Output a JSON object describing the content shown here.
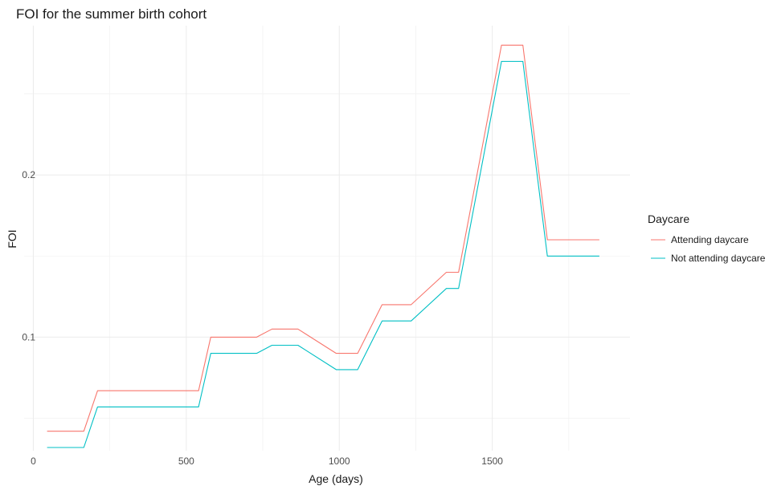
{
  "chart_data": {
    "type": "line",
    "title": "FOI for the summer birth cohort",
    "xlabel": "Age (days)",
    "ylabel": "FOI",
    "xlim": [
      -30,
      1950
    ],
    "ylim": [
      0.03,
      0.292
    ],
    "x_ticks": [
      0,
      500,
      1000,
      1500
    ],
    "x_tick_labels": [
      "0",
      "500",
      "1000",
      "1500"
    ],
    "x_minor_ticks": [
      250,
      750,
      1250,
      1750
    ],
    "y_ticks": [
      0.1,
      0.2
    ],
    "y_tick_labels": [
      "0.1",
      "0.2"
    ],
    "y_minor_ticks": [
      0.05,
      0.15,
      0.25
    ],
    "grid": true,
    "legend": {
      "title": "Daycare",
      "placement": "right"
    },
    "series": [
      {
        "name": "Attending daycare",
        "color": "#F8766D",
        "x": [
          45,
          165,
          210,
          540,
          580,
          730,
          780,
          865,
          990,
          1060,
          1140,
          1235,
          1350,
          1390,
          1530,
          1600,
          1680,
          1850
        ],
        "y": [
          0.042,
          0.042,
          0.067,
          0.067,
          0.1,
          0.1,
          0.105,
          0.105,
          0.09,
          0.09,
          0.12,
          0.12,
          0.14,
          0.14,
          0.28,
          0.28,
          0.16,
          0.16
        ]
      },
      {
        "name": "Not attending daycare",
        "color": "#00BFC4",
        "x": [
          45,
          165,
          210,
          540,
          580,
          730,
          780,
          865,
          990,
          1060,
          1140,
          1235,
          1350,
          1390,
          1530,
          1600,
          1680,
          1850
        ],
        "y": [
          0.032,
          0.032,
          0.057,
          0.057,
          0.09,
          0.09,
          0.095,
          0.095,
          0.08,
          0.08,
          0.11,
          0.11,
          0.13,
          0.13,
          0.27,
          0.27,
          0.15,
          0.15
        ]
      }
    ]
  }
}
